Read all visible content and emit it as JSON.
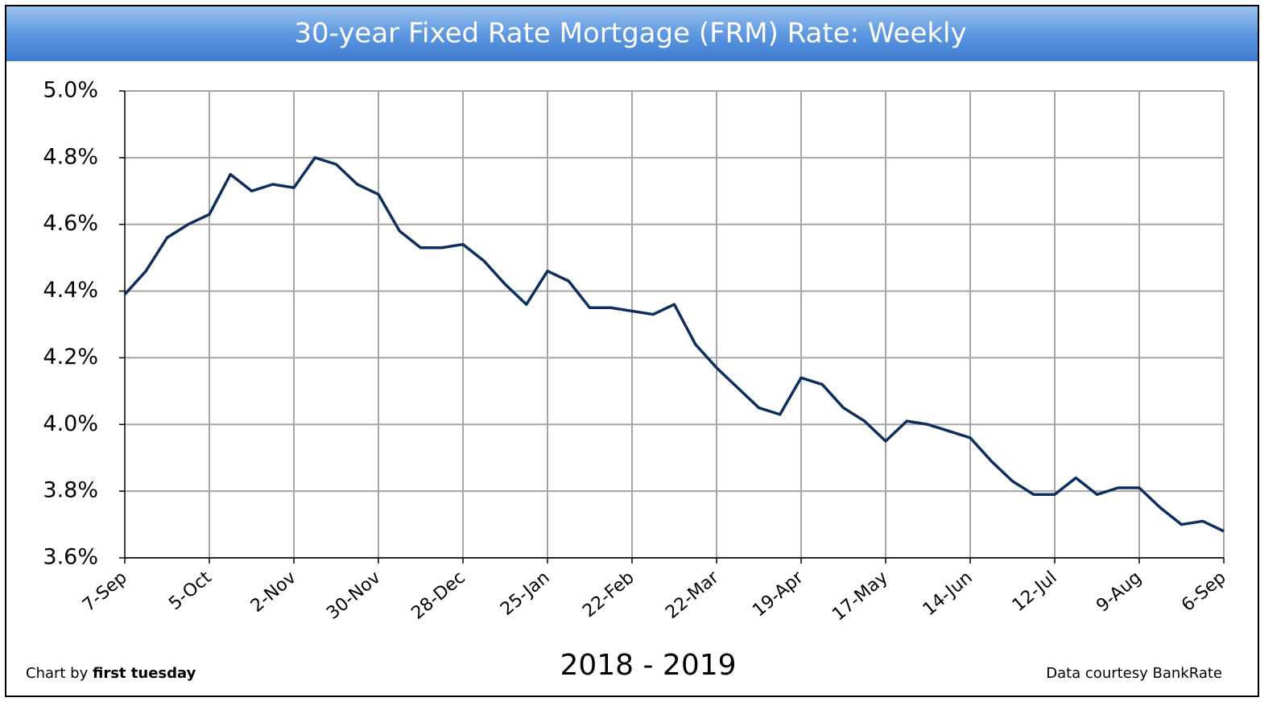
{
  "chart_data": {
    "type": "line",
    "title": "30-year Fixed Rate Mortgage (FRM) Rate: Weekly",
    "x_label": "2018 - 2019",
    "credit_prefix": "Chart by",
    "credit_name": "first tuesday",
    "source": "Data courtesy BankRate",
    "categories": [
      "7-Sep",
      null,
      null,
      null,
      "5-Oct",
      null,
      null,
      null,
      "2-Nov",
      null,
      null,
      null,
      "30-Nov",
      null,
      null,
      null,
      "28-Dec",
      null,
      null,
      null,
      "25-Jan",
      null,
      null,
      null,
      "22-Feb",
      null,
      null,
      null,
      "22-Mar",
      null,
      null,
      null,
      "19-Apr",
      null,
      null,
      null,
      "17-May",
      null,
      null,
      null,
      "14-Jun",
      null,
      null,
      null,
      "12-Jul",
      null,
      null,
      null,
      "9-Aug",
      null,
      null,
      null,
      "6-Sep"
    ],
    "series": [
      {
        "color": "#0d2f5e",
        "values": [
          4.39,
          4.46,
          4.56,
          4.6,
          4.63,
          4.75,
          4.7,
          4.72,
          4.71,
          4.8,
          4.78,
          4.72,
          4.69,
          4.58,
          4.53,
          4.53,
          4.54,
          4.49,
          4.42,
          4.36,
          4.46,
          4.43,
          4.35,
          4.35,
          4.34,
          4.33,
          4.36,
          4.24,
          4.17,
          4.11,
          4.05,
          4.03,
          4.14,
          4.12,
          4.05,
          4.01,
          3.95,
          4.01,
          4.0,
          3.98,
          3.96,
          3.89,
          3.83,
          3.79,
          3.79,
          3.84,
          3.79,
          3.81,
          3.81,
          3.75,
          3.7,
          3.71,
          3.68
        ]
      }
    ],
    "ylim": [
      3.6,
      5.0
    ],
    "yticks": [
      {
        "value": 3.6,
        "label": "3.6%"
      },
      {
        "value": 3.8,
        "label": "3.8%"
      },
      {
        "value": 4.0,
        "label": "4.0%"
      },
      {
        "value": 4.2,
        "label": "4.2%"
      },
      {
        "value": 4.4,
        "label": "4.4%"
      },
      {
        "value": 4.6,
        "label": "4.6%"
      },
      {
        "value": 4.8,
        "label": "4.8%"
      },
      {
        "value": 5.0,
        "label": "5.0%"
      }
    ],
    "grid": true
  }
}
